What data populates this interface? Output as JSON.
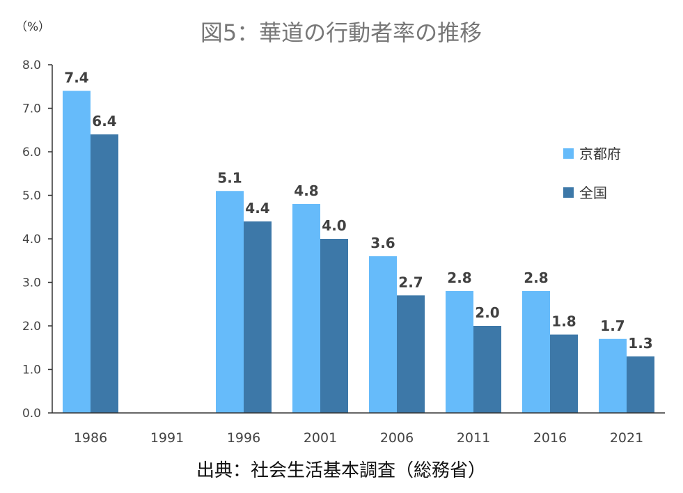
{
  "chart_data": {
    "type": "bar",
    "title": "図5：華道の行動者率の推移",
    "unit_label": "（%）",
    "categories": [
      "1986",
      "1991",
      "1996",
      "2001",
      "2006",
      "2011",
      "2016",
      "2021"
    ],
    "series": [
      {
        "name": "京都府",
        "color": "#66BBFA",
        "values": [
          7.4,
          null,
          5.1,
          4.8,
          3.6,
          2.8,
          2.8,
          1.7
        ]
      },
      {
        "name": "全国",
        "color": "#3D78A8",
        "values": [
          6.4,
          null,
          4.4,
          4.0,
          2.7,
          2.0,
          1.8,
          1.3
        ]
      }
    ],
    "ylim": [
      0,
      8
    ],
    "yticks": [
      "0.0",
      "1.0",
      "2.0",
      "3.0",
      "4.0",
      "5.0",
      "6.0",
      "7.0",
      "8.0"
    ],
    "grid": false,
    "legend_position": "right",
    "source": "出典：社会生活基本調査（総務省）"
  }
}
